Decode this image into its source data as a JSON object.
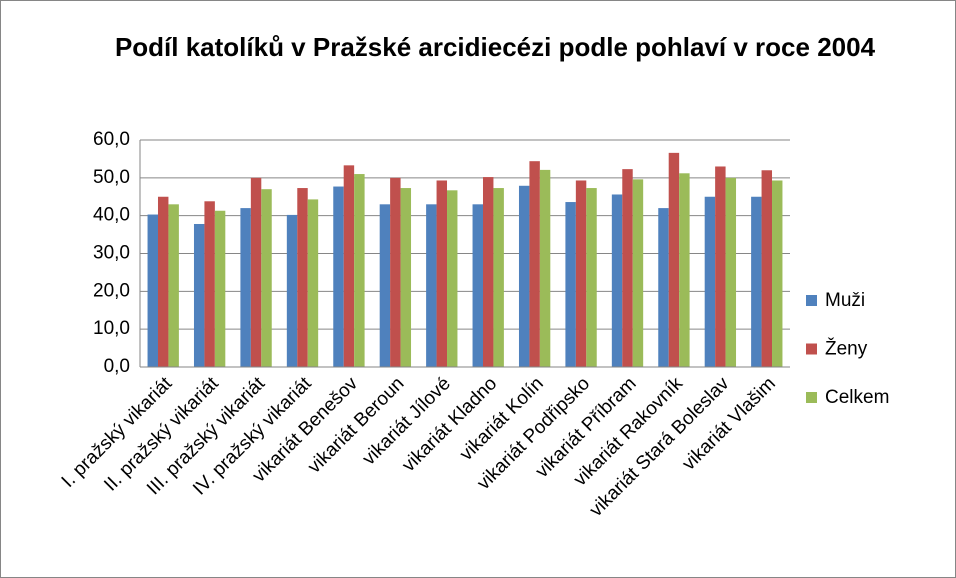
{
  "chart_data": {
    "type": "bar",
    "title": "Podíl katolíků v Pražské arcidiecézi podle pohlaví v roce 2004",
    "categories": [
      "I. pražský vikariát",
      "II. pražský vikariát",
      "III. pražský vikariát",
      "IV. pražský vikariát",
      "vikariát Benešov",
      "vikariát Beroun",
      "vikariát Jílové",
      "vikariát Kladno",
      "vikariát Kolín",
      "vikariát Podřipsko",
      "vikariát Příbram",
      "vikariát Rakovník",
      "vikariát Stará Boleslav",
      "vikariát Vlašim"
    ],
    "series": [
      {
        "name": "Muži",
        "color": "#4f81bd",
        "values": [
          40.3,
          37.8,
          42.0,
          40.2,
          47.7,
          43.0,
          43.0,
          43.0,
          47.9,
          43.6,
          45.6,
          42.0,
          45.0,
          45.0
        ]
      },
      {
        "name": "Ženy",
        "color": "#c0504d",
        "values": [
          45.0,
          43.8,
          50.0,
          47.3,
          53.3,
          50.0,
          49.3,
          50.2,
          54.4,
          49.3,
          52.3,
          56.6,
          53.0,
          52.0
        ]
      },
      {
        "name": "Celkem",
        "color": "#9bbb59",
        "values": [
          43.0,
          41.3,
          47.0,
          44.3,
          51.0,
          47.3,
          46.7,
          47.3,
          52.1,
          47.3,
          49.6,
          51.2,
          50.0,
          49.3
        ]
      }
    ],
    "ylim": [
      0,
      60
    ],
    "yticks": [
      {
        "value": 0,
        "label": "0,0"
      },
      {
        "value": 10,
        "label": "10,0"
      },
      {
        "value": 20,
        "label": "20,0"
      },
      {
        "value": 30,
        "label": "30,0"
      },
      {
        "value": 40,
        "label": "40,0"
      },
      {
        "value": 50,
        "label": "50,0"
      },
      {
        "value": 60,
        "label": "60,0"
      }
    ],
    "grid": true,
    "legend": "right"
  }
}
